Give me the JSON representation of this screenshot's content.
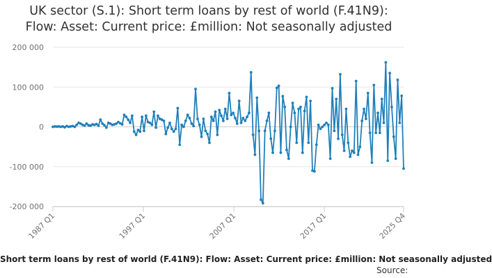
{
  "chart_data": {
    "type": "line",
    "title_line1": "UK sector (S.1): Short term loans by rest of world (F.41N9):",
    "title_line2": "Flow: Asset: Current price: £million: Not seasonally adjusted",
    "ylim": [
      -200000,
      200000
    ],
    "yticks": [
      {
        "value": 200000,
        "label": "200 000"
      },
      {
        "value": 100000,
        "label": "100 000"
      },
      {
        "value": 0,
        "label": "0"
      },
      {
        "value": -100000,
        "label": "-100 000"
      },
      {
        "value": -200000,
        "label": "-200 000"
      }
    ],
    "xticks": [
      "1987 Q1",
      "1997 Q1",
      "2007 Q1",
      "2017 Q1",
      "2025 Q4"
    ],
    "x_start": "1987 Q1",
    "x_end": "2025 Q4",
    "series": [
      {
        "name": "Short term loans by rest of world (F.41N9): Flow: Asset: Current price: £million: Not seasonally adjusted",
        "color": "#1f80ba",
        "values": [
          0,
          1000,
          500,
          1000,
          0,
          1000,
          -1000,
          2000,
          0,
          1000,
          2000,
          0,
          5000,
          10000,
          8000,
          5000,
          3000,
          8000,
          4000,
          3000,
          6000,
          5000,
          7000,
          3000,
          18000,
          8000,
          4000,
          -2000,
          10000,
          8000,
          5000,
          6000,
          8000,
          12000,
          9000,
          6000,
          30000,
          25000,
          18000,
          10000,
          28000,
          -12000,
          -20000,
          -8000,
          -12000,
          25000,
          -10000,
          28000,
          12000,
          10000,
          5000,
          38000,
          -2000,
          28000,
          20000,
          18000,
          15000,
          -18000,
          -2000,
          10000,
          -5000,
          -12000,
          -5000,
          47000,
          -45000,
          5000,
          0,
          15000,
          30000,
          22000,
          8000,
          2000,
          95000,
          20000,
          5000,
          -25000,
          20000,
          -10000,
          -18000,
          -40000,
          25000,
          15000,
          38000,
          -20000,
          42000,
          28000,
          15000,
          45000,
          20000,
          85000,
          30000,
          35000,
          22000,
          8000,
          65000,
          10000,
          22000,
          15000,
          25000,
          35000,
          137000,
          -20000,
          -70000,
          73000,
          -10000,
          -183000,
          -192000,
          -10000,
          15000,
          35000,
          -30000,
          -65000,
          -10000,
          98000,
          103000,
          -65000,
          77000,
          50000,
          -58000,
          -80000,
          0,
          60000,
          35000,
          -40000,
          45000,
          50000,
          -65000,
          40000,
          75000,
          -40000,
          65000,
          -110000,
          -112000,
          -45000,
          5000,
          -5000,
          0,
          5000,
          10000,
          5000,
          -80000,
          97000,
          -10000,
          70000,
          -30000,
          132000,
          -20000,
          -60000,
          45000,
          -40000,
          -75000,
          -60000,
          -65000,
          115000,
          -70000,
          -50000,
          15000,
          45000,
          20000,
          85000,
          -15000,
          -90000,
          105000,
          -15000,
          35000,
          -15000,
          70000,
          10000,
          162000,
          -85000,
          135000,
          50000,
          -25000,
          -80000,
          118000,
          10000,
          78000,
          -105000
        ]
      }
    ]
  },
  "footer": {
    "legend_text": "Short term loans by rest of world (F.41N9): Flow: Asset: Current price: £million: Not seasonally adjusted",
    "source_text": "Source:"
  }
}
